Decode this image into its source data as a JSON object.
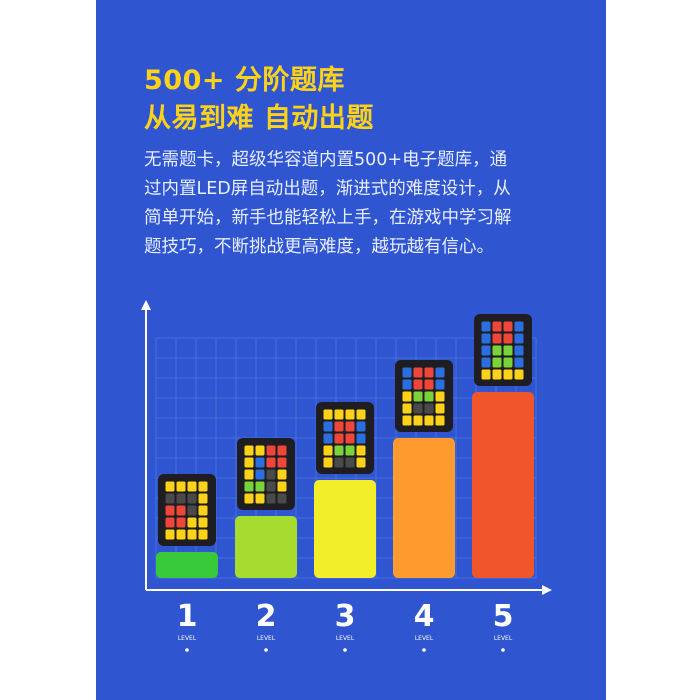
{
  "heading": {
    "line1": "500+ 分阶题库",
    "line2": "从易到难  自动出题"
  },
  "description": {
    "lines": [
      "无需题卡，超级华容道内置500+电子题库，通",
      "过内置LED屏自动出题，渐进式的难度设计，从",
      "简单开始，新手也能轻松上手，在游戏中学习解",
      "题技巧，不断挑战更高难度，越玩越有信心。"
    ]
  },
  "colors": {
    "background": "#2f55d0",
    "heading": "#ffd21a",
    "grid": "#4a6fe0"
  },
  "chart_data": {
    "type": "bar",
    "categories": [
      "1",
      "2",
      "3",
      "4",
      "5"
    ],
    "category_sublabel": "LEVEL",
    "values": [
      1,
      2,
      3,
      4,
      5
    ],
    "bar_colors": [
      "#38c93a",
      "#a6dc2e",
      "#f2ee2a",
      "#ff9a2e",
      "#f0562a"
    ],
    "title": "",
    "xlabel": "",
    "ylabel": "",
    "ylim": [
      0,
      5
    ],
    "grid": true,
    "puzzle_icon_per_bar": "puzzle-board-icon"
  }
}
